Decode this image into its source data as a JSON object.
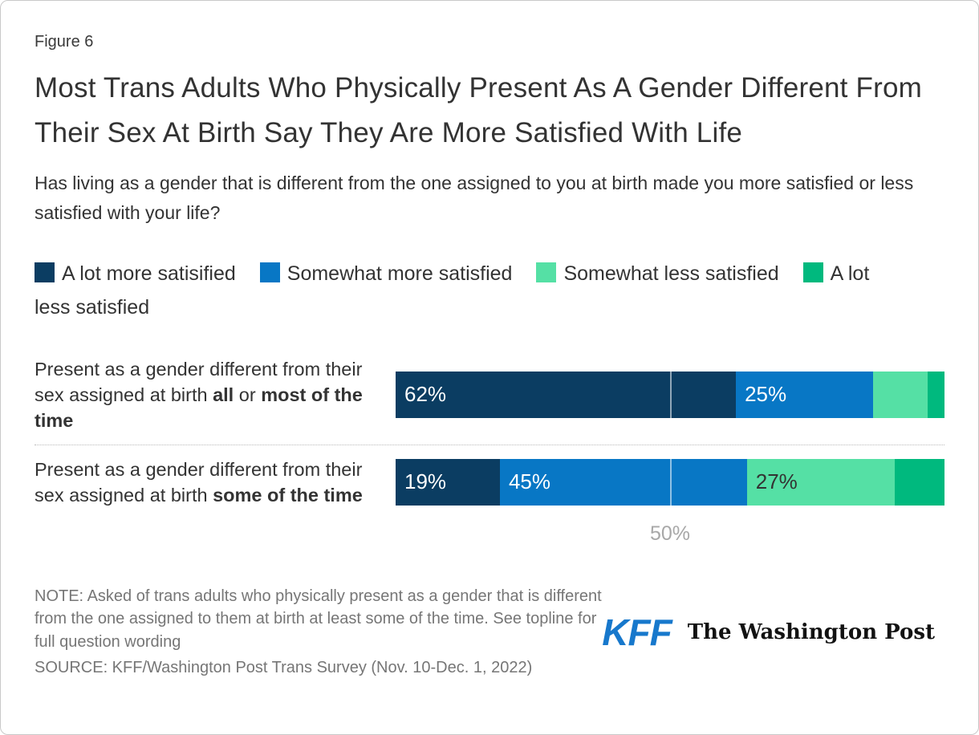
{
  "figure_label": "Figure 6",
  "title": "Most Trans Adults Who Physically Present As A Gender Different From Their Sex At Birth Say They Are More Satisfied With Life",
  "subtitle": "Has living as a gender that is different from the one assigned to you at birth made you more satisfied or less satisfied with your life?",
  "colors": {
    "a_lot_more": "#0b3d62",
    "somewhat_more": "#0877c5",
    "somewhat_less": "#55e0a5",
    "a_lot_less": "#00b97e",
    "text": "#333333",
    "note_gray": "#767676",
    "axis_gray": "#a8a8a8",
    "kff_blue": "#1778cc"
  },
  "chart_data": {
    "type": "bar",
    "orientation": "horizontal",
    "stacked": true,
    "unit": "%",
    "xlim": [
      0,
      100
    ],
    "gridline_at": 50,
    "axis_tick_label": "50%",
    "legend_position": "top",
    "categories": [
      "Present as a gender different from their sex assigned at birth all or most of the time",
      "Present as a gender different from their sex assigned at birth some of the time"
    ],
    "category_rich_text": [
      [
        {
          "t": "Present as a gender different from their sex assigned at birth ",
          "b": false
        },
        {
          "t": "all",
          "b": true
        },
        {
          "t": " or ",
          "b": false
        },
        {
          "t": "most of the time",
          "b": true
        }
      ],
      [
        {
          "t": "Present as a gender different from their sex assigned at birth ",
          "b": false
        },
        {
          "t": "some of the time",
          "b": true
        }
      ]
    ],
    "series": [
      {
        "name": "A lot more satisified",
        "color": "#0b3d62",
        "values": [
          62,
          19
        ],
        "value_labels": [
          "62%",
          "19%"
        ],
        "value_label_color": "#ffffff"
      },
      {
        "name": "Somewhat more satisfied",
        "color": "#0877c5",
        "values": [
          25,
          45
        ],
        "value_labels": [
          "25%",
          "45%"
        ],
        "value_label_color": "#ffffff"
      },
      {
        "name": "Somewhat less satisfied",
        "color": "#55e0a5",
        "values": [
          10,
          27
        ],
        "value_labels": [
          null,
          "27%"
        ],
        "value_label_color": "#333333"
      },
      {
        "name": "A lot less satisfied",
        "color": "#00b97e",
        "values": [
          3,
          9
        ],
        "value_labels": [
          null,
          null
        ],
        "value_label_color": "#ffffff"
      }
    ]
  },
  "note": "NOTE: Asked of trans adults who physically present as a gender that is different from the one assigned to them at birth at least some of the time. See topline for full question wording",
  "source": "SOURCE: KFF/Washington Post Trans Survey (Nov. 10-Dec. 1, 2022)",
  "logos": {
    "kff": "KFF",
    "washington_post": "The Washington Post"
  }
}
